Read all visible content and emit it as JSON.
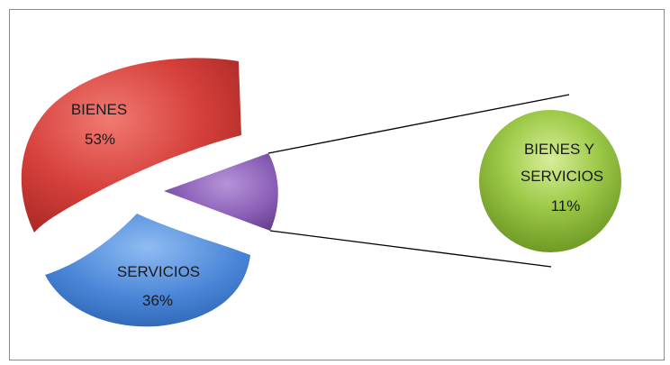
{
  "chart_data": {
    "type": "pie",
    "subtype": "pie-of-pie",
    "slices": [
      {
        "label": "BIENES",
        "percent": "53%",
        "value": 53,
        "color": "#cf3a35"
      },
      {
        "label": "SERVICIOS",
        "percent": "36%",
        "value": 36,
        "color": "#3f7ed4"
      },
      {
        "label": "BIENES Y SERVICIOS",
        "percent": "11%",
        "value": 11,
        "color": "#8c62b5"
      }
    ],
    "secondary": {
      "label_lines": [
        "BIENES Y",
        "SERVICIOS"
      ],
      "percent": "11%",
      "color": "#8fc03c"
    },
    "legend": "none"
  }
}
